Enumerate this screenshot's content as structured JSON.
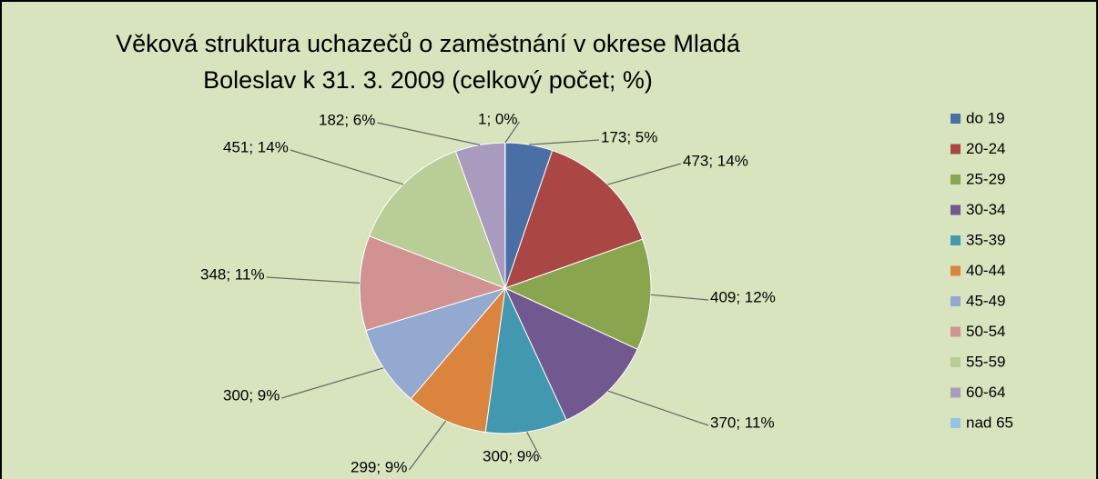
{
  "chart_data": {
    "type": "pie",
    "title": [
      "Věková struktura uchazečů o zaměstnání v okrese Mladá",
      "Boleslav k 31. 3. 2009 (celkový počet; %)"
    ],
    "categories": [
      "do 19",
      "20-24",
      "25-29",
      "30-34",
      "35-39",
      "40-44",
      "45-49",
      "50-54",
      "55-59",
      "60-64",
      "nad 65"
    ],
    "values": [
      173,
      473,
      409,
      370,
      300,
      299,
      300,
      348,
      451,
      182,
      1
    ],
    "value_labels": [
      "173; 5%",
      "473; 14%",
      "409; 12%",
      "370; 11%",
      "300; 9%",
      "299; 9%",
      "300; 9%",
      "348; 11%",
      "451; 14%",
      "182; 6%",
      "1; 0%"
    ],
    "colors": [
      "#4a6fa5",
      "#aa4643",
      "#89a54e",
      "#71588f",
      "#4198af",
      "#db843d",
      "#93a9cf",
      "#d19392",
      "#b9cd96",
      "#a99bbd",
      "#93c5e0"
    ],
    "legend": "right"
  }
}
